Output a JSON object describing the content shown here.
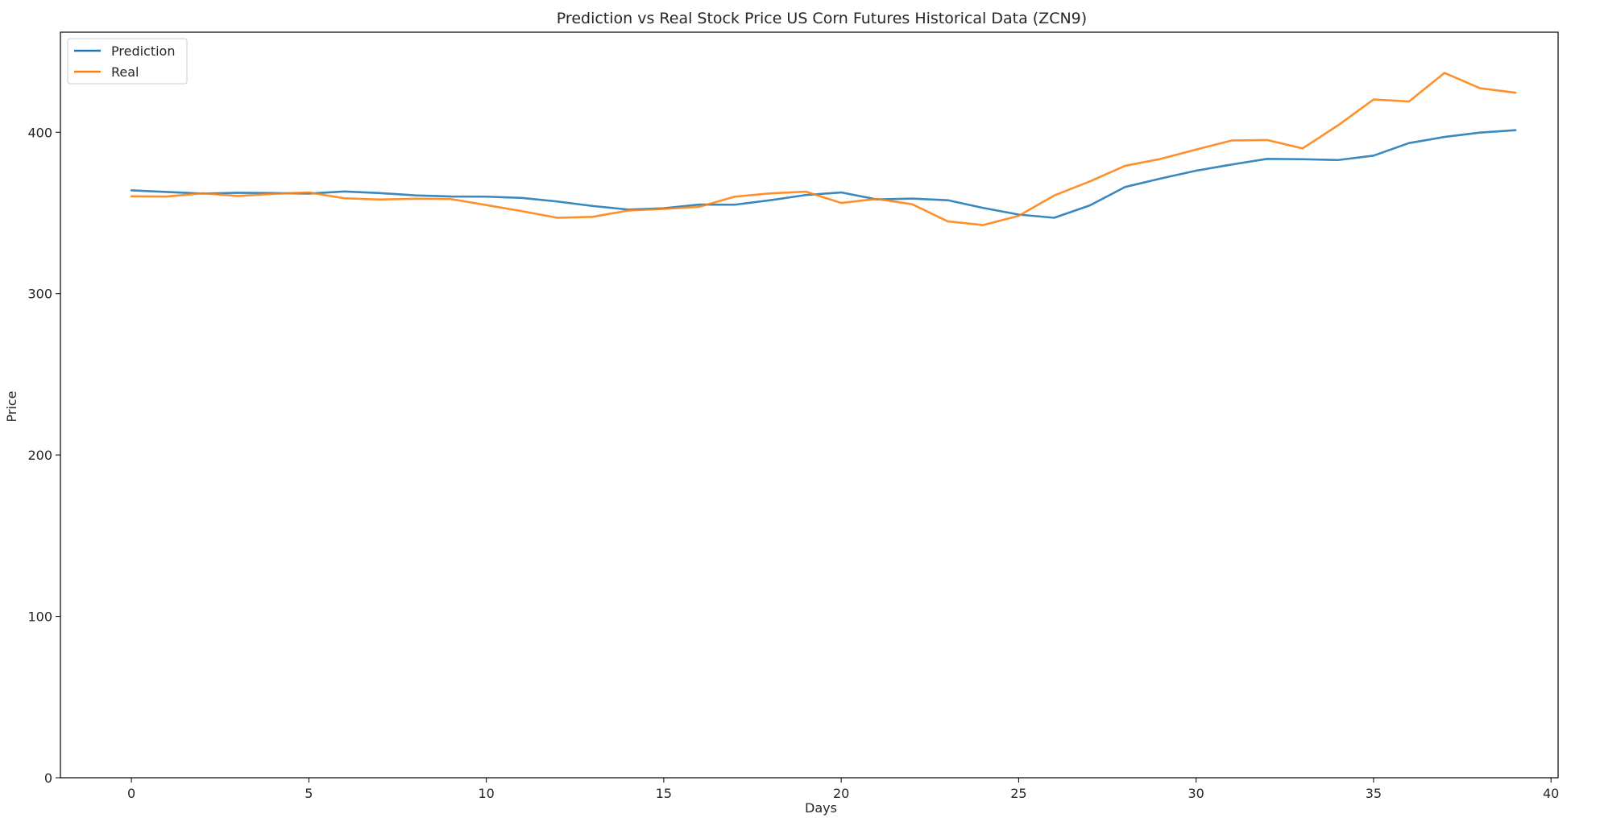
{
  "chart_data": {
    "type": "line",
    "title": "Prediction vs Real Stock Price US Corn Futures Historical Data (ZCN9)",
    "xlabel": "Days",
    "ylabel": "Price",
    "xlim": [
      -2,
      40.2
    ],
    "ylim": [
      0,
      462
    ],
    "xticks": [
      0,
      5,
      10,
      15,
      20,
      25,
      30,
      35,
      40
    ],
    "yticks": [
      0,
      100,
      200,
      300,
      400
    ],
    "grid": false,
    "legend_position": "top-left",
    "x": [
      0,
      1,
      2,
      3,
      4,
      5,
      6,
      7,
      8,
      9,
      10,
      11,
      12,
      13,
      14,
      15,
      16,
      17,
      18,
      19,
      20,
      21,
      22,
      23,
      24,
      25,
      26,
      27,
      28,
      29,
      30,
      31,
      32,
      33,
      34,
      35,
      36,
      37,
      38,
      39
    ],
    "series": [
      {
        "name": "Prediction",
        "color": "#1f77b4",
        "values": [
          364,
          363,
          362,
          362.5,
          362.3,
          362,
          363.3,
          362.3,
          360.9,
          360.2,
          360.1,
          359.3,
          357.1,
          354.3,
          352.1,
          352.9,
          355.2,
          355.1,
          357.9,
          361.1,
          362.7,
          358.4,
          358.9,
          357.9,
          353.1,
          349,
          347,
          354.6,
          366.1,
          371.3,
          376.2,
          380,
          383.5,
          383.3,
          382.8,
          385.5,
          393.3,
          397.1,
          399.8,
          401.3
        ]
      },
      {
        "name": "Real",
        "color": "#ff7f0e",
        "values": [
          360.3,
          360.2,
          362.2,
          360.5,
          361.8,
          362.7,
          359.1,
          358.3,
          358.8,
          358.6,
          354.9,
          351.1,
          347,
          347.6,
          351.5,
          352.5,
          353.8,
          360.1,
          362.1,
          363.2,
          356.2,
          358.7,
          355.4,
          344.8,
          342.5,
          348.2,
          360.8,
          369.5,
          379.2,
          383.5,
          389.3,
          394.9,
          395.2,
          390,
          404.3,
          420.3,
          419.1,
          436.8,
          427.3,
          424.5
        ]
      }
    ]
  }
}
